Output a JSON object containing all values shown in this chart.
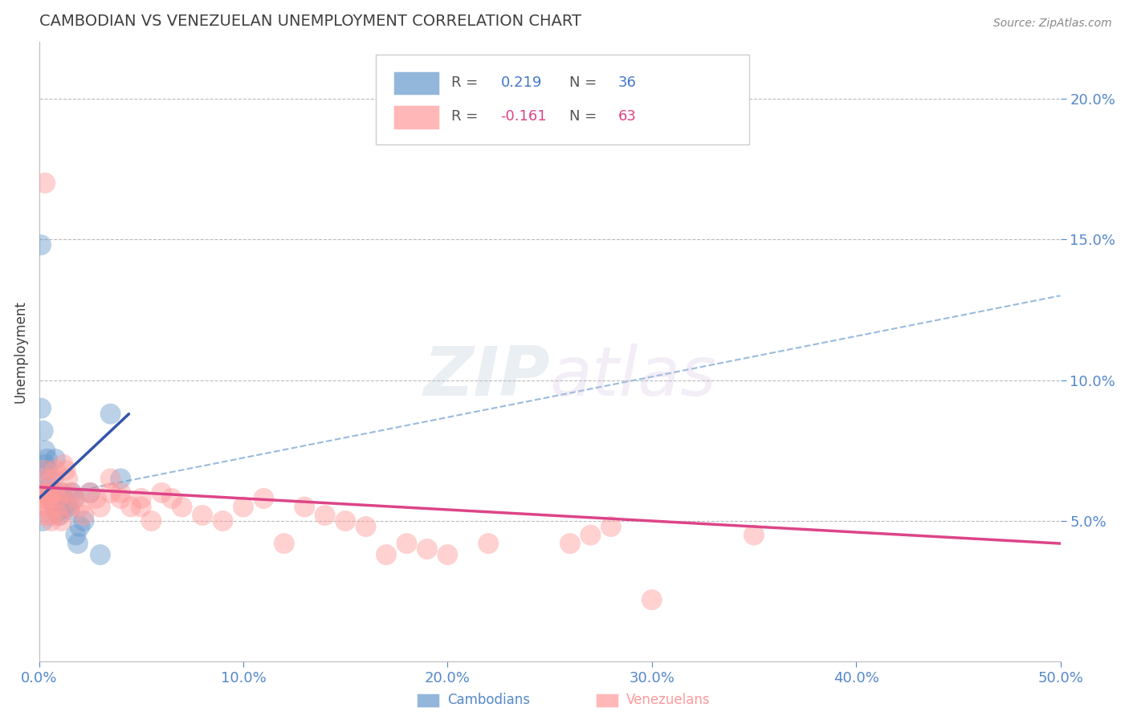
{
  "title": "CAMBODIAN VS VENEZUELAN UNEMPLOYMENT CORRELATION CHART",
  "source_text": "Source: ZipAtlas.com",
  "xlabel_cambodians": "Cambodians",
  "xlabel_venezuelans": "Venezuelans",
  "ylabel": "Unemployment",
  "xlim": [
    0.0,
    0.5
  ],
  "ylim": [
    0.0,
    0.22
  ],
  "xticks": [
    0.0,
    0.1,
    0.2,
    0.3,
    0.4,
    0.5
  ],
  "yticks": [
    0.05,
    0.1,
    0.15,
    0.2
  ],
  "ytick_labels": [
    "5.0%",
    "10.0%",
    "15.0%",
    "20.0%"
  ],
  "xtick_labels": [
    "0.0%",
    "10.0%",
    "20.0%",
    "30.0%",
    "40.0%",
    "50.0%"
  ],
  "cambodian_color": "#6699CC",
  "venezuelan_color": "#FF9999",
  "cambodian_r": 0.219,
  "cambodian_n": 36,
  "venezuelan_r": -0.161,
  "venezuelan_n": 63,
  "background_color": "#FFFFFF",
  "grid_color": "#BBBBBB",
  "title_color": "#404040",
  "axis_label_color": "#5588CC",
  "watermark_text": "ZIPatlas",
  "cambodian_points": [
    [
      0.001,
      0.09
    ],
    [
      0.002,
      0.082
    ],
    [
      0.003,
      0.075
    ],
    [
      0.004,
      0.072
    ],
    [
      0.004,
      0.068
    ],
    [
      0.005,
      0.065
    ],
    [
      0.005,
      0.062
    ],
    [
      0.006,
      0.06
    ],
    [
      0.006,
      0.058
    ],
    [
      0.007,
      0.058
    ],
    [
      0.007,
      0.06
    ],
    [
      0.008,
      0.056
    ],
    [
      0.008,
      0.054
    ],
    [
      0.009,
      0.055
    ],
    [
      0.009,
      0.053
    ],
    [
      0.01,
      0.054
    ],
    [
      0.01,
      0.052
    ],
    [
      0.011,
      0.06
    ],
    [
      0.012,
      0.058
    ],
    [
      0.013,
      0.056
    ],
    [
      0.014,
      0.055
    ],
    [
      0.015,
      0.054
    ],
    [
      0.016,
      0.06
    ],
    [
      0.017,
      0.058
    ],
    [
      0.018,
      0.045
    ],
    [
      0.019,
      0.042
    ],
    [
      0.02,
      0.048
    ],
    [
      0.022,
      0.05
    ],
    [
      0.025,
      0.06
    ],
    [
      0.03,
      0.038
    ],
    [
      0.035,
      0.088
    ],
    [
      0.001,
      0.148
    ],
    [
      0.003,
      0.07
    ],
    [
      0.008,
      0.072
    ],
    [
      0.04,
      0.065
    ],
    [
      0.002,
      0.05
    ]
  ],
  "venezuelan_points": [
    [
      0.001,
      0.06
    ],
    [
      0.002,
      0.058
    ],
    [
      0.002,
      0.055
    ],
    [
      0.003,
      0.052
    ],
    [
      0.003,
      0.068
    ],
    [
      0.004,
      0.06
    ],
    [
      0.004,
      0.065
    ],
    [
      0.005,
      0.058
    ],
    [
      0.005,
      0.055
    ],
    [
      0.006,
      0.052
    ],
    [
      0.006,
      0.05
    ],
    [
      0.007,
      0.06
    ],
    [
      0.007,
      0.065
    ],
    [
      0.008,
      0.068
    ],
    [
      0.008,
      0.06
    ],
    [
      0.009,
      0.058
    ],
    [
      0.01,
      0.055
    ],
    [
      0.01,
      0.052
    ],
    [
      0.011,
      0.05
    ],
    [
      0.012,
      0.07
    ],
    [
      0.012,
      0.06
    ],
    [
      0.013,
      0.068
    ],
    [
      0.014,
      0.065
    ],
    [
      0.015,
      0.055
    ],
    [
      0.016,
      0.06
    ],
    [
      0.018,
      0.058
    ],
    [
      0.02,
      0.055
    ],
    [
      0.022,
      0.052
    ],
    [
      0.025,
      0.06
    ],
    [
      0.028,
      0.058
    ],
    [
      0.03,
      0.055
    ],
    [
      0.035,
      0.065
    ],
    [
      0.035,
      0.06
    ],
    [
      0.04,
      0.06
    ],
    [
      0.04,
      0.058
    ],
    [
      0.045,
      0.055
    ],
    [
      0.05,
      0.058
    ],
    [
      0.05,
      0.055
    ],
    [
      0.055,
      0.05
    ],
    [
      0.06,
      0.06
    ],
    [
      0.065,
      0.058
    ],
    [
      0.07,
      0.055
    ],
    [
      0.08,
      0.052
    ],
    [
      0.09,
      0.05
    ],
    [
      0.1,
      0.055
    ],
    [
      0.11,
      0.058
    ],
    [
      0.12,
      0.042
    ],
    [
      0.13,
      0.055
    ],
    [
      0.14,
      0.052
    ],
    [
      0.15,
      0.05
    ],
    [
      0.16,
      0.048
    ],
    [
      0.17,
      0.038
    ],
    [
      0.18,
      0.042
    ],
    [
      0.003,
      0.17
    ],
    [
      0.005,
      0.058
    ],
    [
      0.26,
      0.042
    ],
    [
      0.27,
      0.045
    ],
    [
      0.19,
      0.04
    ],
    [
      0.2,
      0.038
    ],
    [
      0.35,
      0.045
    ],
    [
      0.22,
      0.042
    ],
    [
      0.3,
      0.022
    ],
    [
      0.28,
      0.048
    ]
  ],
  "cambodian_line_solid": {
    "x0": 0.0,
    "x1": 0.044,
    "y0": 0.058,
    "y1": 0.088
  },
  "cambodian_line_dashed": {
    "x0": 0.0,
    "x1": 0.5,
    "y0": 0.058,
    "y1": 0.13
  },
  "venezuelan_line": {
    "x0": 0.0,
    "x1": 0.5,
    "y0": 0.062,
    "y1": 0.042
  }
}
